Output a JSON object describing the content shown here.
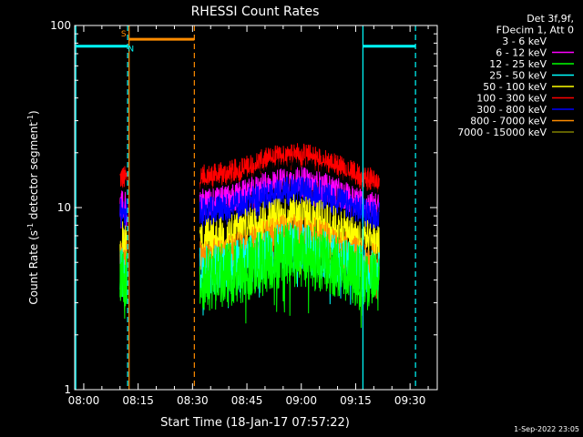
{
  "chart_data": {
    "type": "line",
    "title": "RHESSI Count Rates",
    "xlabel": "Start Time (18-Jan-17 07:57:22)",
    "ylabel": "Count Rate (s",
    "ylabel_sup": "-1",
    "ylabel_mid": " detector segment",
    "ylabel_sup2": "-1",
    "ylabel_end": ")",
    "yscale": "log",
    "ylim": [
      1,
      100
    ],
    "xlim_minutes": [
      -2.5,
      97.5
    ],
    "x_ticks": [
      {
        "label": "08:00",
        "v": 0
      },
      {
        "label": "08:15",
        "v": 15
      },
      {
        "label": "08:30",
        "v": 30
      },
      {
        "label": "08:45",
        "v": 45
      },
      {
        "label": "09:00",
        "v": 60
      },
      {
        "label": "09:15",
        "v": 75
      },
      {
        "label": "09:30",
        "v": 90
      }
    ],
    "y_ticks": [
      {
        "label": "1",
        "v": 1
      },
      {
        "label": "10",
        "v": 10
      },
      {
        "label": "100",
        "v": 100
      }
    ],
    "legend": {
      "placement": "top-right",
      "header": [
        "Det 3f,9f,",
        "FDecim 1, Att 0"
      ],
      "entries": [
        {
          "label": "3 - 6 keV",
          "color": "#000000"
        },
        {
          "label": "6 - 12 keV",
          "color": "#ff00ff"
        },
        {
          "label": "12 - 25 keV",
          "color": "#00ff00"
        },
        {
          "label": "25 - 50 keV",
          "color": "#00ffff"
        },
        {
          "label": "50 - 100 keV",
          "color": "#ffff00"
        },
        {
          "label": "100 - 300 keV",
          "color": "#ff0000"
        },
        {
          "label": "300 - 800 keV",
          "color": "#0000ff"
        },
        {
          "label": "800 - 7000 keV",
          "color": "#ff8c00"
        },
        {
          "label": "7000 - 15000 keV",
          "color": "#808000"
        }
      ]
    },
    "segments": [
      {
        "start": 10.0,
        "end": 12.0
      },
      {
        "start": 32.0,
        "end": 81.5
      }
    ],
    "series": [
      {
        "name": "100 - 300 keV",
        "color": "#ff0000",
        "base": 14.5,
        "peak": 19.5,
        "noise": 0.07
      },
      {
        "name": "3 - 6 keV",
        "color": "#000000",
        "base": 11.5,
        "peak": 16.5,
        "noise": 0.07
      },
      {
        "name": "6 - 12 keV",
        "color": "#ff00ff",
        "base": 10.5,
        "peak": 14.0,
        "noise": 0.08
      },
      {
        "name": "300 - 800 keV",
        "color": "#0000ff",
        "base": 9.5,
        "peak": 12.5,
        "noise": 0.08
      },
      {
        "name": "50 - 100 keV",
        "color": "#ffff00",
        "base": 6.5,
        "peak": 9.0,
        "noise": 0.12
      },
      {
        "name": "800 - 7000 keV",
        "color": "#ff8c00",
        "base": 5.0,
        "peak": 7.0,
        "noise": 0.12
      },
      {
        "name": "25 - 50 keV",
        "color": "#00ffff",
        "base": 4.4,
        "peak": 6.0,
        "noise": 0.14
      },
      {
        "name": "12 - 25 keV",
        "color": "#00ff00",
        "base": 4.0,
        "peak": 5.5,
        "noise": 0.18
      }
    ],
    "markers": {
      "vlines": [
        {
          "x": -2.2,
          "color": "#00ffff",
          "dash": false
        },
        {
          "x": 12.1,
          "color": "#00ffff",
          "dash": true
        },
        {
          "x": 12.5,
          "color": "#ff8c00",
          "dash": false
        },
        {
          "x": 30.5,
          "color": "#ff8c00",
          "dash": true
        },
        {
          "x": 77.0,
          "color": "#00ffff",
          "dash": false
        },
        {
          "x": 91.5,
          "color": "#00ffff",
          "dash": true
        }
      ],
      "hbars": [
        {
          "x0": -2.2,
          "x1": 12.1,
          "y": 77,
          "color": "#00ffff"
        },
        {
          "x0": 12.5,
          "x1": 30.5,
          "y": 84,
          "color": "#ff8c00"
        },
        {
          "x0": 77.0,
          "x1": 91.5,
          "y": 77,
          "color": "#00ffff"
        }
      ],
      "labels": [
        {
          "text": "S",
          "x": 11.0,
          "y": 87,
          "color": "#ff8c00"
        },
        {
          "text": "N",
          "x": 13.0,
          "y": 72,
          "color": "#00ffff"
        }
      ]
    },
    "timestamp": "1-Sep-2022 23:05"
  }
}
